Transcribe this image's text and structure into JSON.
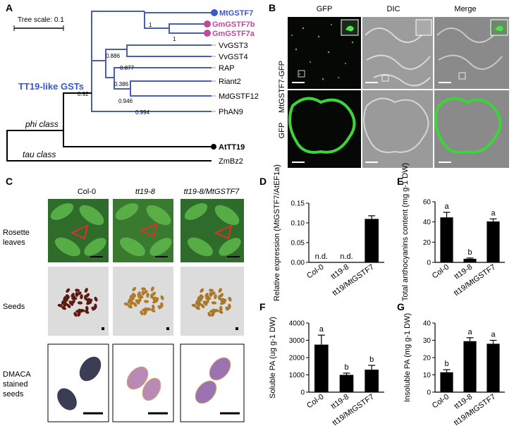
{
  "panels": {
    "A": "A",
    "B": "B",
    "C": "C",
    "D": "D",
    "E": "E",
    "F": "F",
    "G": "G"
  },
  "tree": {
    "scale_label": "Tree scale: 0.1",
    "group_label": "TT19-like GSTs",
    "phi_label": "phi class",
    "tau_label": "tau class",
    "leaves": [
      "MtGSTF7",
      "GmGSTF7b",
      "GmGSTF7a",
      "VvGST3",
      "VvGST4",
      "RAP",
      "Riant2",
      "MdGSTF12",
      "PhAN9",
      "AtTT19",
      "ZmBz2"
    ],
    "bootstrap": [
      "1",
      "1",
      "0.886",
      "0.877",
      "0.386",
      "0.946",
      "0.994",
      "0.92"
    ],
    "colors": {
      "clade": "#4a5fb4",
      "mt": "#3b58c8",
      "gm": "#c2489c",
      "at": "#000000"
    }
  },
  "microscopy": {
    "col_headers": [
      "GFP",
      "DIC",
      "Merge"
    ],
    "row_labels": [
      "MtGSTF7-GFP",
      "GFP"
    ]
  },
  "plants": {
    "col_headers": [
      "Col-0",
      "tt19-8",
      "tt19-8/MtGSTF7"
    ],
    "row_labels": [
      "Rosette\nleaves",
      "Seeds",
      "DMACA\nstained\nseeds"
    ]
  },
  "chart_data": [
    {
      "panel": "D",
      "type": "bar",
      "ylabel": "Relative expression (MtGSTF7/AtEF1a)",
      "categories": [
        "Col-0",
        "tt19-8",
        "tt19/MtGSTF7"
      ],
      "values": [
        0,
        0,
        0.11
      ],
      "errors": [
        0,
        0,
        0.008
      ],
      "labels": [
        "n.d.",
        "n.d.",
        ""
      ],
      "ylim": [
        0,
        0.15
      ],
      "yticks": [
        "0.00",
        "0.05",
        "0.10",
        "0.15"
      ]
    },
    {
      "panel": "E",
      "type": "bar",
      "ylabel": "Total anthocyanins content (mg g-1 DW)",
      "categories": [
        "Col-0",
        "tt19-8",
        "tt19/MtGSTF7"
      ],
      "values": [
        44.5,
        3.5,
        40.5
      ],
      "errors": [
        5,
        0.8,
        2.5
      ],
      "labels": [
        "a",
        "b",
        "a"
      ],
      "ylim": [
        0,
        60
      ],
      "yticks": [
        "0",
        "20",
        "40",
        "60"
      ]
    },
    {
      "panel": "F",
      "type": "bar",
      "ylabel": "Soluble PA (ug g-1 DW)",
      "categories": [
        "Col-0",
        "tt19-8",
        "tt19/MtGSTF7"
      ],
      "values": [
        2750,
        1000,
        1300
      ],
      "errors": [
        550,
        100,
        250
      ],
      "labels": [
        "a",
        "b",
        "b"
      ],
      "ylim": [
        0,
        4000
      ],
      "yticks": [
        "0",
        "1000",
        "2000",
        "3000",
        "4000"
      ]
    },
    {
      "panel": "G",
      "type": "bar",
      "ylabel": "Insoluble PA (mg g-1 DW)",
      "categories": [
        "Col-0",
        "tt19-8",
        "tt19/MtGSTF7"
      ],
      "values": [
        11.5,
        29.5,
        28
      ],
      "errors": [
        1.5,
        2,
        2
      ],
      "labels": [
        "b",
        "a",
        "a"
      ],
      "ylim": [
        0,
        40
      ],
      "yticks": [
        "0",
        "10",
        "20",
        "30",
        "40"
      ]
    }
  ]
}
